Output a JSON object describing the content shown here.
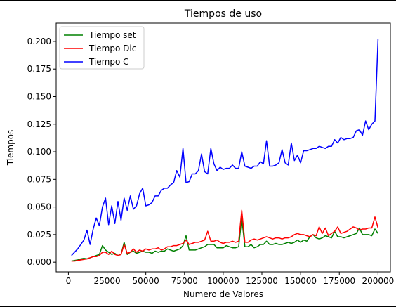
{
  "chart_data": {
    "type": "line",
    "title": "Tiempos de uso",
    "xlabel": "Numero de Valores",
    "ylabel": "Tiempos",
    "xlim": [
      -7900,
      208000
    ],
    "ylim": [
      -0.0088,
      0.2165
    ],
    "xticks": [
      0,
      25000,
      50000,
      75000,
      100000,
      125000,
      150000,
      175000,
      200000
    ],
    "xtick_labels": [
      "0",
      "25000",
      "50000",
      "75000",
      "100000",
      "125000",
      "150000",
      "175000",
      "200000"
    ],
    "yticks": [
      0.0,
      0.025,
      0.05,
      0.075,
      0.1,
      0.125,
      0.15,
      0.175,
      0.2
    ],
    "ytick_labels": [
      "0.000",
      "0.025",
      "0.050",
      "0.075",
      "0.100",
      "0.125",
      "0.150",
      "0.175",
      "0.200"
    ],
    "grid": false,
    "legend_position": "top-left",
    "x": [
      2000,
      4000,
      6000,
      8000,
      10000,
      12000,
      14000,
      16000,
      18000,
      20000,
      22000,
      24000,
      26000,
      28000,
      30000,
      32000,
      34000,
      36000,
      38000,
      40000,
      42000,
      44000,
      46000,
      48000,
      50000,
      52000,
      54000,
      56000,
      58000,
      60000,
      62000,
      64000,
      66000,
      68000,
      70000,
      72000,
      74000,
      76000,
      78000,
      80000,
      82000,
      84000,
      86000,
      88000,
      90000,
      92000,
      94000,
      96000,
      98000,
      100000,
      102000,
      104000,
      106000,
      108000,
      110000,
      112000,
      114000,
      116000,
      118000,
      120000,
      122000,
      124000,
      126000,
      128000,
      130000,
      132000,
      134000,
      136000,
      138000,
      140000,
      142000,
      144000,
      146000,
      148000,
      150000,
      152000,
      154000,
      156000,
      158000,
      160000,
      162000,
      164000,
      166000,
      168000,
      170000,
      172000,
      174000,
      176000,
      178000,
      180000,
      182000,
      184000,
      186000,
      188000,
      190000,
      192000,
      194000,
      196000,
      198000,
      200000
    ],
    "series": [
      {
        "name": "Tiempo set",
        "color": "#008000",
        "values": [
          0.001,
          0.0015,
          0.002,
          0.003,
          0.0035,
          0.003,
          0.004,
          0.005,
          0.006,
          0.007,
          0.015,
          0.011,
          0.009,
          0.007,
          0.008,
          0.006,
          0.007,
          0.018,
          0.007,
          0.009,
          0.01,
          0.008,
          0.009,
          0.01,
          0.009,
          0.009,
          0.008,
          0.01,
          0.009,
          0.01,
          0.01,
          0.012,
          0.011,
          0.01,
          0.011,
          0.012,
          0.015,
          0.024,
          0.011,
          0.011,
          0.011,
          0.012,
          0.013,
          0.014,
          0.016,
          0.016,
          0.016,
          0.013,
          0.013,
          0.013,
          0.015,
          0.014,
          0.013,
          0.013,
          0.014,
          0.04,
          0.014,
          0.014,
          0.016,
          0.013,
          0.014,
          0.016,
          0.016,
          0.019,
          0.016,
          0.016,
          0.017,
          0.016,
          0.016,
          0.017,
          0.018,
          0.017,
          0.018,
          0.02,
          0.018,
          0.02,
          0.019,
          0.023,
          0.025,
          0.022,
          0.021,
          0.022,
          0.024,
          0.023,
          0.022,
          0.028,
          0.023,
          0.023,
          0.022,
          0.023,
          0.024,
          0.025,
          0.026,
          0.031,
          0.025,
          0.025,
          0.025,
          0.024,
          0.03,
          0.026
        ]
      },
      {
        "name": "Tiempo Dic",
        "color": "#ff0000",
        "values": [
          0.001,
          0.001,
          0.0015,
          0.002,
          0.0025,
          0.003,
          0.004,
          0.005,
          0.005,
          0.006,
          0.009,
          0.009,
          0.007,
          0.01,
          0.007,
          0.006,
          0.007,
          0.016,
          0.008,
          0.009,
          0.012,
          0.009,
          0.011,
          0.01,
          0.012,
          0.011,
          0.012,
          0.012,
          0.013,
          0.011,
          0.012,
          0.014,
          0.014,
          0.015,
          0.015,
          0.016,
          0.017,
          0.02,
          0.016,
          0.017,
          0.018,
          0.018,
          0.019,
          0.02,
          0.028,
          0.019,
          0.019,
          0.02,
          0.018,
          0.017,
          0.018,
          0.018,
          0.019,
          0.018,
          0.019,
          0.047,
          0.018,
          0.018,
          0.02,
          0.021,
          0.02,
          0.021,
          0.022,
          0.023,
          0.022,
          0.021,
          0.022,
          0.022,
          0.021,
          0.022,
          0.022,
          0.023,
          0.025,
          0.026,
          0.025,
          0.025,
          0.024,
          0.023,
          0.025,
          0.024,
          0.032,
          0.026,
          0.031,
          0.024,
          0.026,
          0.028,
          0.032,
          0.026,
          0.027,
          0.028,
          0.03,
          0.032,
          0.031,
          0.029,
          0.03,
          0.03,
          0.031,
          0.031,
          0.041,
          0.031
        ]
      },
      {
        "name": "Tiempo C",
        "color": "#0000ff",
        "values": [
          0.006,
          0.009,
          0.012,
          0.016,
          0.02,
          0.029,
          0.016,
          0.03,
          0.04,
          0.033,
          0.05,
          0.058,
          0.034,
          0.051,
          0.035,
          0.055,
          0.038,
          0.058,
          0.047,
          0.06,
          0.048,
          0.051,
          0.062,
          0.067,
          0.051,
          0.052,
          0.054,
          0.06,
          0.06,
          0.065,
          0.067,
          0.067,
          0.07,
          0.072,
          0.083,
          0.077,
          0.103,
          0.072,
          0.073,
          0.08,
          0.08,
          0.083,
          0.098,
          0.082,
          0.08,
          0.103,
          0.089,
          0.083,
          0.086,
          0.084,
          0.085,
          0.085,
          0.088,
          0.085,
          0.085,
          0.1,
          0.087,
          0.086,
          0.085,
          0.087,
          0.087,
          0.091,
          0.089,
          0.11,
          0.087,
          0.087,
          0.088,
          0.09,
          0.102,
          0.09,
          0.088,
          0.108,
          0.092,
          0.097,
          0.09,
          0.101,
          0.101,
          0.102,
          0.103,
          0.103,
          0.105,
          0.104,
          0.103,
          0.105,
          0.105,
          0.111,
          0.108,
          0.113,
          0.111,
          0.112,
          0.112,
          0.113,
          0.119,
          0.12,
          0.115,
          0.128,
          0.12,
          0.125,
          0.128,
          0.202
        ]
      }
    ]
  }
}
